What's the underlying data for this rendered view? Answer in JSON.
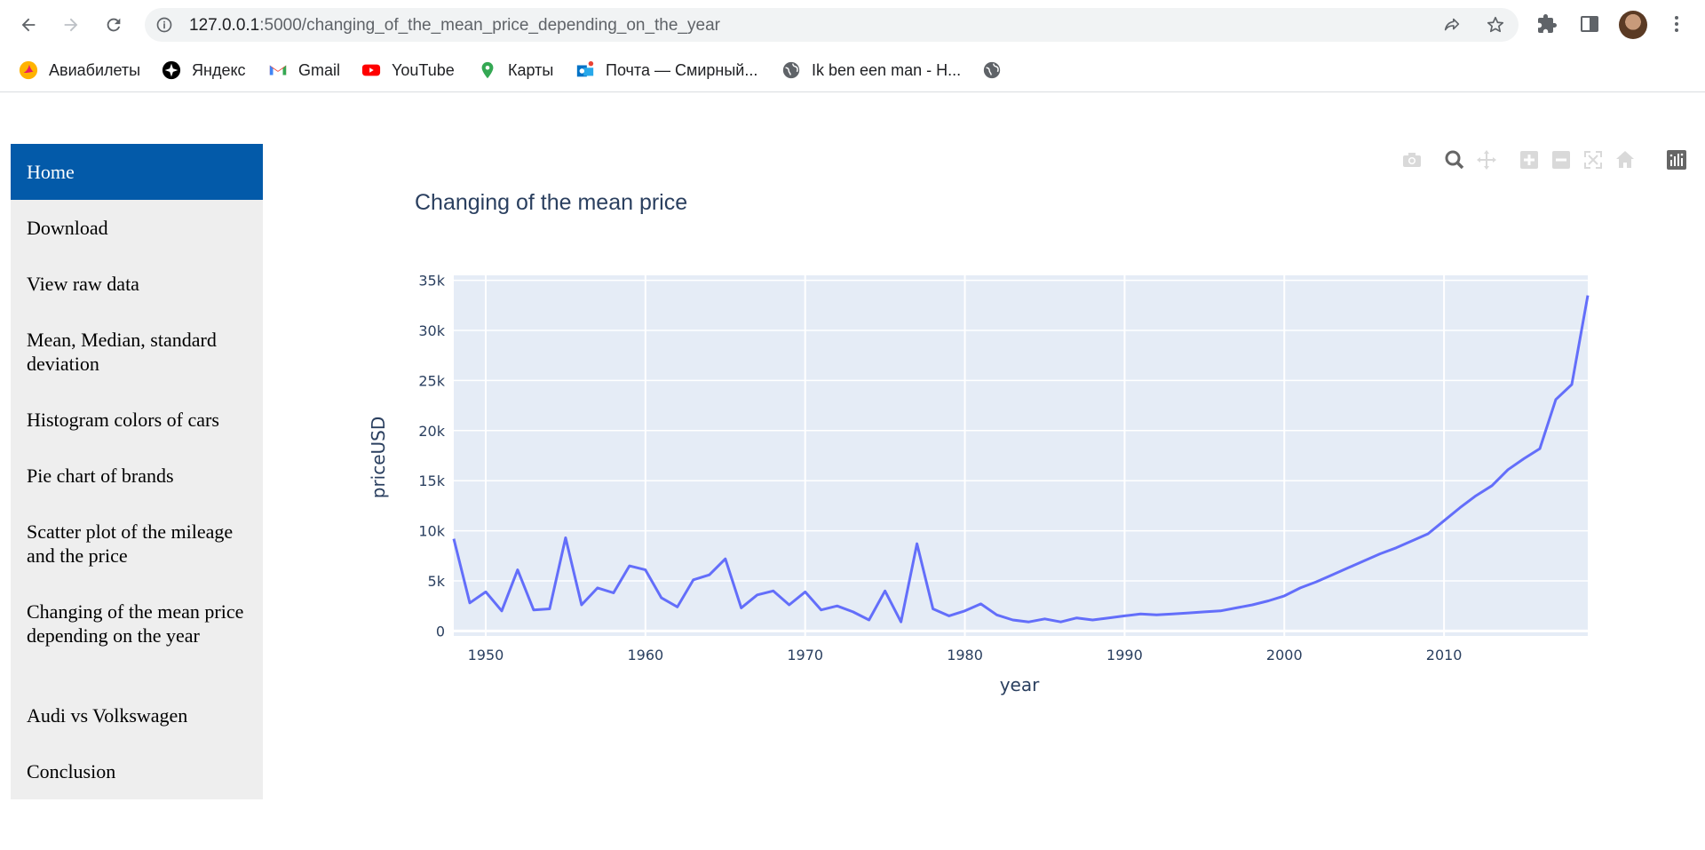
{
  "browser": {
    "url_host": "127.0.0.1",
    "url_rest": ":5000/changing_of_the_mean_price_depending_on_the_year",
    "bookmarks": [
      {
        "label": "Авиабилеты",
        "icon": "aviasales-icon"
      },
      {
        "label": "Яндекс",
        "icon": "yandex-icon"
      },
      {
        "label": "Gmail",
        "icon": "gmail-icon"
      },
      {
        "label": "YouTube",
        "icon": "youtube-icon"
      },
      {
        "label": "Карты",
        "icon": "maps-icon"
      },
      {
        "label": "Почта — Смирный...",
        "icon": "outlook-icon"
      },
      {
        "label": "Ik ben een man - H...",
        "icon": "globe-icon"
      },
      {
        "label": "",
        "icon": "globe-icon"
      }
    ]
  },
  "sidebar": {
    "items": [
      {
        "label": "Home",
        "active": true
      },
      {
        "label": "Download"
      },
      {
        "label": "View raw data"
      },
      {
        "label": "Mean, Median, standard deviation"
      },
      {
        "label": "Histogram colors of cars"
      },
      {
        "label": "Pie chart of brands"
      },
      {
        "label": "Scatter plot of the mileage and the price"
      },
      {
        "label": "Changing of the mean price depending on the year"
      },
      {
        "label": "Audi vs Volkswagen"
      },
      {
        "label": "Conclusion"
      }
    ]
  },
  "colors": {
    "active_nav": "#035aa9",
    "sidebar_bg": "#eeeeee",
    "plot_bg": "#e5ecf6",
    "line": "#636efa",
    "axis_text": "#2a3f5f"
  },
  "chart_data": {
    "type": "line",
    "title": "Changing of the mean price",
    "xlabel": "year",
    "ylabel": "priceUSD",
    "xlim": [
      1948,
      2019
    ],
    "ylim": [
      -500,
      35500
    ],
    "x_ticks": [
      1950,
      1960,
      1970,
      1980,
      1990,
      2000,
      2010
    ],
    "x_tick_labels": [
      "1950",
      "1960",
      "1970",
      "1980",
      "1990",
      "2000",
      "2010"
    ],
    "y_ticks": [
      0,
      5000,
      10000,
      15000,
      20000,
      25000,
      30000,
      35000
    ],
    "y_tick_labels": [
      "0",
      "5k",
      "10k",
      "15k",
      "20k",
      "25k",
      "30k",
      "35k"
    ],
    "grid": true,
    "series": [
      {
        "x": [
          1948,
          1949,
          1950,
          1951,
          1952,
          1953,
          1954,
          1955,
          1956,
          1957,
          1958,
          1959,
          1960,
          1961,
          1962,
          1963,
          1964,
          1965,
          1966,
          1967,
          1968,
          1969,
          1970,
          1971,
          1972,
          1973,
          1974,
          1975,
          1976,
          1977,
          1978,
          1979,
          1980,
          1981,
          1982,
          1983,
          1984,
          1985,
          1986,
          1987,
          1988,
          1989,
          1990,
          1991,
          1992,
          1993,
          1994,
          1995,
          1996,
          1997,
          1998,
          1999,
          2000,
          2001,
          2002,
          2003,
          2004,
          2005,
          2006,
          2007,
          2008,
          2009,
          2010,
          2011,
          2012,
          2013,
          2014,
          2015,
          2016,
          2017,
          2018,
          2019
        ],
        "y": [
          9200,
          2800,
          3900,
          2000,
          6100,
          2100,
          2200,
          9300,
          2600,
          4300,
          3800,
          6500,
          6100,
          3300,
          2400,
          5100,
          5600,
          7200,
          2300,
          3600,
          4000,
          2600,
          3900,
          2100,
          2500,
          1900,
          1100,
          4000,
          900,
          8700,
          2200,
          1500,
          2000,
          2700,
          1600,
          1100,
          900,
          1200,
          900,
          1300,
          1100,
          1300,
          1500,
          1700,
          1600,
          1700,
          1800,
          1900,
          2000,
          2300,
          2600,
          3000,
          3500,
          4300,
          4900,
          5600,
          6300,
          7000,
          7700,
          8300,
          9000,
          9700,
          11000,
          12300,
          13500,
          14500,
          16100,
          17200,
          18200,
          23100,
          24600,
          33500
        ]
      }
    ]
  }
}
